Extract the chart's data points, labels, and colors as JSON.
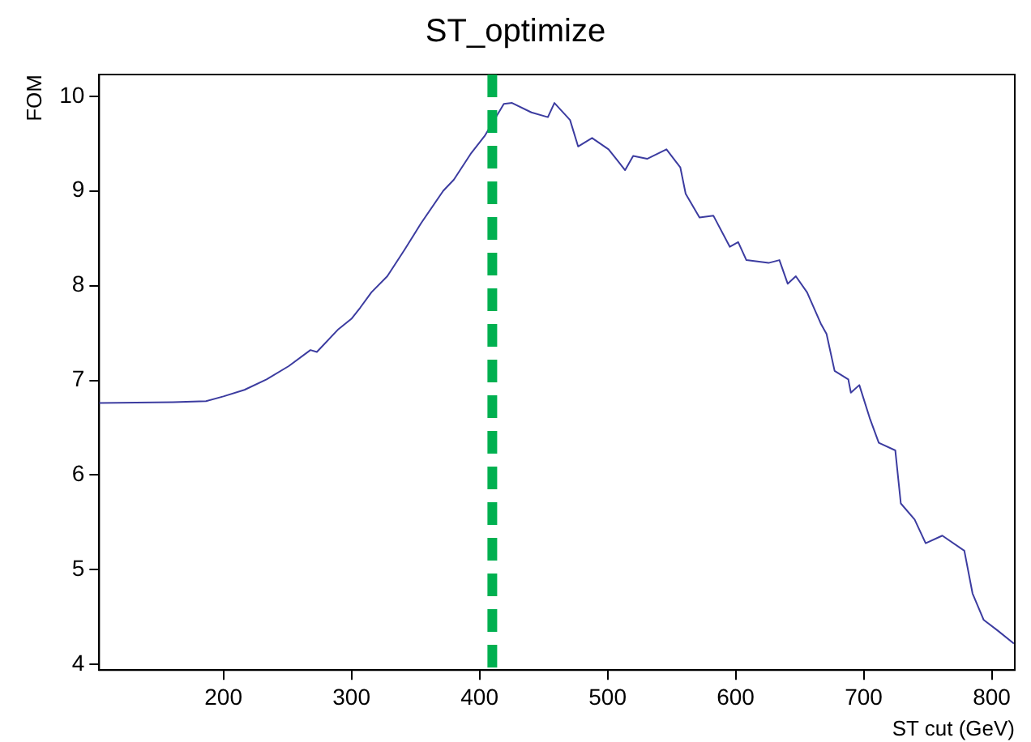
{
  "chart_data": {
    "type": "line",
    "title": "ST_optimize",
    "xlabel": "ST cut (GeV)",
    "ylabel": "FOM",
    "x": [
      103,
      160.6,
      186.4,
      200,
      216.5,
      233.7,
      251,
      268,
      273,
      289.8,
      300,
      307,
      315.6,
      328,
      341.5,
      354.4,
      371.6,
      380,
      393,
      404,
      419,
      425.4,
      440.5,
      453.4,
      458.5,
      470.7,
      477,
      487.9,
      500.8,
      513.7,
      520,
      530.9,
      546,
      556.8,
      561,
      571.8,
      582.6,
      595.5,
      602,
      608.4,
      625.7,
      634.2,
      640.7,
      647,
      655.8,
      666.5,
      671,
      677.3,
      688,
      690,
      696.6,
      705,
      711.8,
      724.7,
      729,
      739.8,
      748.4,
      761.4,
      778.6,
      785,
      793.7,
      804.4,
      817.3
    ],
    "series": [
      {
        "color": "#3c3ca0",
        "values": [
          6.76,
          6.77,
          6.78,
          6.83,
          6.9,
          7.01,
          7.15,
          7.32,
          7.3,
          7.54,
          7.65,
          7.77,
          7.93,
          8.1,
          8.38,
          8.66,
          9.0,
          9.12,
          9.39,
          9.58,
          9.92,
          9.93,
          9.83,
          9.78,
          9.93,
          9.75,
          9.47,
          9.56,
          9.44,
          9.22,
          9.37,
          9.34,
          9.44,
          9.25,
          8.97,
          8.72,
          8.74,
          8.41,
          8.46,
          8.27,
          8.24,
          8.27,
          8.02,
          8.1,
          7.93,
          7.6,
          7.49,
          7.1,
          7.01,
          6.87,
          6.95,
          6.59,
          6.34,
          6.26,
          5.7,
          5.53,
          5.28,
          5.36,
          5.2,
          4.75,
          4.47,
          4.36,
          4.22
        ]
      }
    ],
    "xlim": [
      103,
      818
    ],
    "xticks": [
      200,
      300,
      400,
      500,
      600,
      700,
      800
    ],
    "ylim": [
      3.94,
      10.23
    ],
    "yticks": [
      4,
      5,
      6,
      7,
      8,
      9,
      10
    ],
    "ref_lines": [
      {
        "axis": "x",
        "value": 410,
        "color": "#00b050",
        "line_style": "dashed"
      }
    ],
    "grid": false,
    "legend": false
  }
}
